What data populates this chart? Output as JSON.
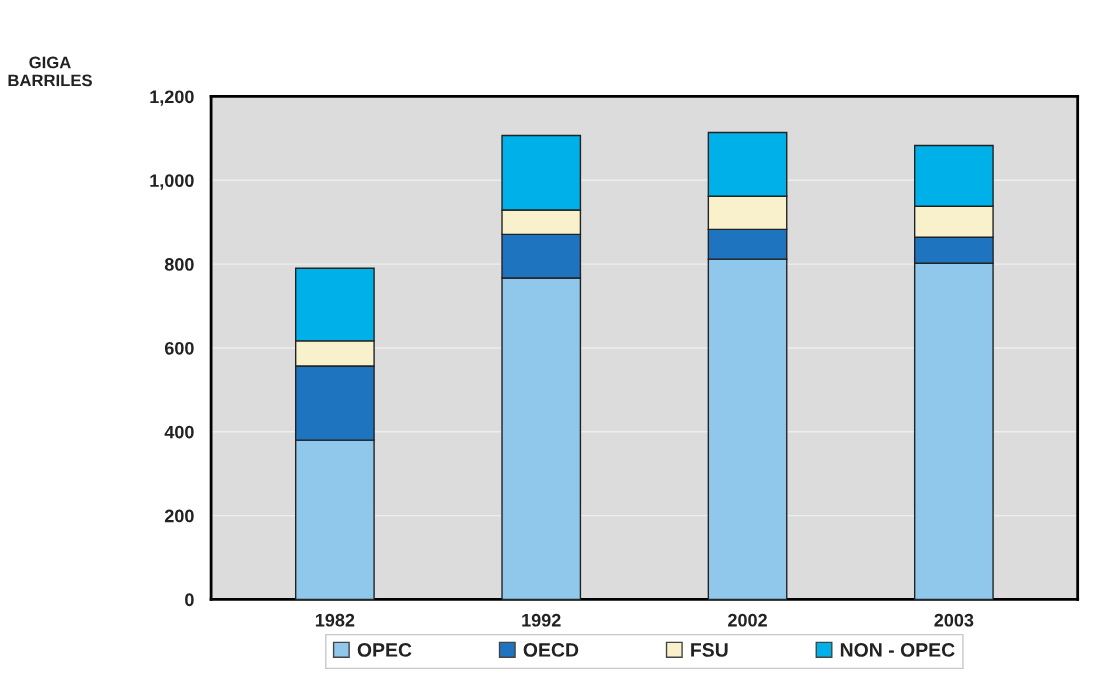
{
  "chart_data": {
    "type": "bar",
    "stacked": true,
    "ylabel": "GIGA\nBARRILES",
    "categories": [
      "1982",
      "1992",
      "2002",
      "2003"
    ],
    "series": [
      {
        "name": "OPEC",
        "color": "#8fc8ea",
        "values": [
          380,
          767,
          812,
          802
        ]
      },
      {
        "name": "OECD",
        "color": "#1f74c0",
        "values": [
          177,
          104,
          71,
          62
        ]
      },
      {
        "name": "FSU",
        "color": "#f8f1cc",
        "values": [
          60,
          58,
          79,
          74
        ]
      },
      {
        "name": "NON - OPEC",
        "color": "#00b0e8",
        "values": [
          173,
          178,
          152,
          145
        ]
      }
    ],
    "ylim": [
      0,
      1200
    ],
    "yticks": [
      0,
      200,
      400,
      600,
      800,
      {
        "value": 1000,
        "label": "1,000"
      },
      {
        "value": 1200,
        "label": "1,200"
      }
    ],
    "grid": "y",
    "legend": "bottom"
  }
}
